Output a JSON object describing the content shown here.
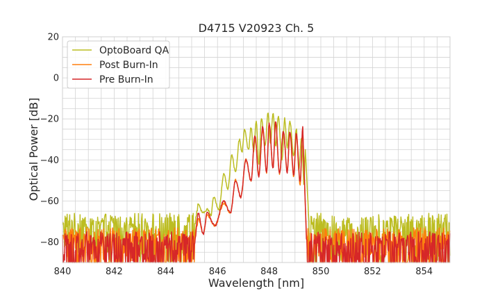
{
  "chart_data": {
    "type": "line",
    "title": "D4715 V20923 Ch. 5",
    "xlabel": "Wavelength [nm]",
    "ylabel": "Optical Power [dB]",
    "xlim": [
      840,
      855
    ],
    "ylim": [
      -90,
      20
    ],
    "x_ticks": [
      "840",
      "842",
      "844",
      "846",
      "848",
      "850",
      "852",
      "854"
    ],
    "y_ticks": [
      "20",
      "0",
      "−20",
      "−40",
      "−60",
      "−80"
    ],
    "grid": true,
    "legend_position": "top-left",
    "series": [
      {
        "name": "OptoBoard QA",
        "color": "#bcbd22",
        "noise_floor": -73,
        "peaks": [
          [
            845.25,
            -62
          ],
          [
            845.6,
            -64
          ],
          [
            845.85,
            -58
          ],
          [
            846.25,
            -47
          ],
          [
            846.55,
            -38
          ],
          [
            846.85,
            -30
          ],
          [
            847.05,
            -25
          ],
          [
            847.3,
            -24
          ],
          [
            847.5,
            -21
          ],
          [
            847.7,
            -20
          ],
          [
            847.95,
            -17
          ],
          [
            848.15,
            -17
          ],
          [
            848.35,
            -19
          ],
          [
            848.6,
            -20
          ],
          [
            848.8,
            -21
          ],
          [
            849.05,
            -25
          ],
          [
            849.25,
            -29
          ],
          [
            849.4,
            -35
          ]
        ],
        "valleys": [
          [
            845.45,
            -66
          ],
          [
            845.75,
            -67
          ],
          [
            846.05,
            -64
          ],
          [
            846.4,
            -54
          ],
          [
            846.7,
            -46
          ],
          [
            846.95,
            -36
          ],
          [
            847.2,
            -35
          ],
          [
            847.4,
            -36
          ],
          [
            847.6,
            -42
          ],
          [
            847.85,
            -33
          ],
          [
            848.05,
            -32
          ],
          [
            848.25,
            -33
          ],
          [
            848.5,
            -40
          ],
          [
            848.7,
            -34
          ],
          [
            848.95,
            -38
          ],
          [
            849.15,
            -45
          ],
          [
            849.35,
            -52
          ]
        ]
      },
      {
        "name": "Post Burn-In",
        "color": "#ff7f0e",
        "noise_floor": -80,
        "peaks": [
          [
            845.25,
            -68
          ],
          [
            845.6,
            -67
          ],
          [
            846.25,
            -61
          ],
          [
            846.7,
            -50
          ],
          [
            847.1,
            -40
          ],
          [
            847.45,
            -29
          ],
          [
            847.75,
            -25
          ],
          [
            848.0,
            -23
          ],
          [
            848.25,
            -22
          ],
          [
            848.55,
            -26
          ],
          [
            848.8,
            -27
          ],
          [
            849.05,
            -28
          ],
          [
            849.3,
            -25
          ]
        ],
        "valleys": [
          [
            845.45,
            -76
          ],
          [
            845.9,
            -72
          ],
          [
            846.5,
            -66
          ],
          [
            846.9,
            -58
          ],
          [
            847.3,
            -50
          ],
          [
            847.6,
            -47
          ],
          [
            847.9,
            -46
          ],
          [
            848.15,
            -44
          ],
          [
            848.4,
            -47
          ],
          [
            848.7,
            -46
          ],
          [
            848.95,
            -48
          ],
          [
            849.2,
            -52
          ]
        ]
      },
      {
        "name": "Pre Burn-In",
        "color": "#d62728",
        "noise_floor": -82,
        "peaks": [
          [
            845.25,
            -66
          ],
          [
            845.6,
            -66
          ],
          [
            846.25,
            -60
          ],
          [
            846.7,
            -50
          ],
          [
            847.1,
            -40
          ],
          [
            847.45,
            -28
          ],
          [
            847.75,
            -24
          ],
          [
            848.0,
            -22
          ],
          [
            848.25,
            -21
          ],
          [
            848.55,
            -26
          ],
          [
            848.8,
            -26
          ],
          [
            849.05,
            -27
          ],
          [
            849.3,
            -24
          ]
        ],
        "valleys": [
          [
            845.45,
            -76
          ],
          [
            845.9,
            -72
          ],
          [
            846.5,
            -66
          ],
          [
            846.9,
            -58
          ],
          [
            847.3,
            -50
          ],
          [
            847.6,
            -48
          ],
          [
            847.9,
            -46
          ],
          [
            848.15,
            -44
          ],
          [
            848.4,
            -47
          ],
          [
            848.7,
            -46
          ],
          [
            848.95,
            -47
          ],
          [
            849.2,
            -51
          ]
        ]
      }
    ]
  }
}
